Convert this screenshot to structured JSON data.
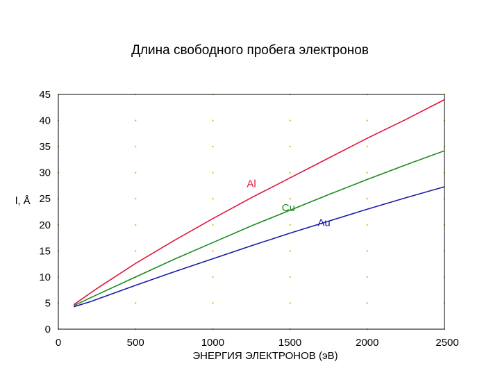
{
  "chart_data": {
    "type": "line",
    "title": "Длина свободного пробега электронов",
    "xlabel": "ЭНЕРГИЯ ЭЛЕКТРОНОВ (эВ)",
    "ylabel": "l, Å",
    "xlim": [
      0,
      2500
    ],
    "ylim": [
      0,
      45
    ],
    "xticks": [
      0,
      500,
      1000,
      1500,
      2000,
      2500
    ],
    "yticks": [
      0,
      5,
      10,
      15,
      20,
      25,
      30,
      35,
      40,
      45
    ],
    "grid": "dotted",
    "legend": "inline-labels",
    "series": [
      {
        "name": "Al",
        "color": "#e0143c",
        "x": [
          100,
          250,
          500,
          750,
          1000,
          1250,
          1500,
          1750,
          2000,
          2250,
          2500
        ],
        "y": [
          4.7,
          7.8,
          12.6,
          17.0,
          21.2,
          25.2,
          29.0,
          32.8,
          36.6,
          40.2,
          44.0
        ]
      },
      {
        "name": "Cu",
        "color": "#1a8a1a",
        "x": [
          100,
          250,
          500,
          750,
          1000,
          1250,
          1500,
          1750,
          2000,
          2250,
          2500
        ],
        "y": [
          4.5,
          6.6,
          10.0,
          13.4,
          16.6,
          19.8,
          22.8,
          25.8,
          28.7,
          31.5,
          34.2
        ]
      },
      {
        "name": "Au",
        "color": "#1a1aa8",
        "x": [
          100,
          200,
          500,
          750,
          1000,
          1250,
          1500,
          1750,
          2000,
          2250,
          2500
        ],
        "y": [
          4.3,
          5.2,
          8.4,
          11.0,
          13.5,
          16.0,
          18.4,
          20.7,
          23.0,
          25.2,
          27.3
        ]
      }
    ]
  }
}
